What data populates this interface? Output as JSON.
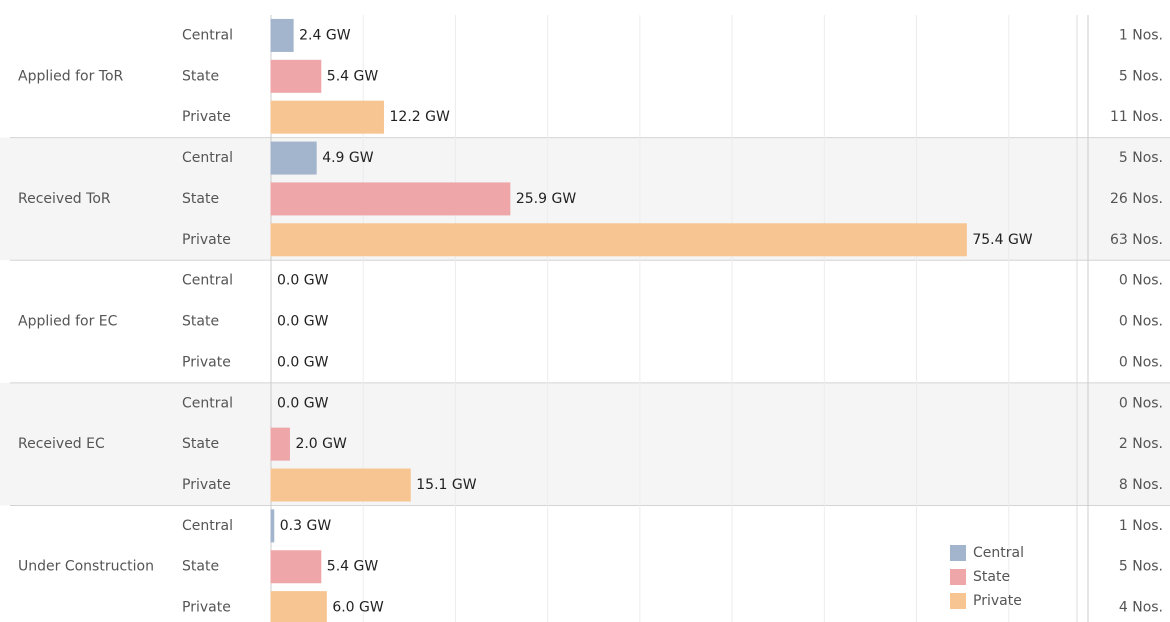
{
  "chart_data": {
    "type": "bar",
    "orientation": "horizontal",
    "categories": [
      "Applied for ToR",
      "Received ToR",
      "Applied for EC",
      "Received EC",
      "Under Construction"
    ],
    "series": [
      {
        "name": "Central",
        "color": "#a3b5cc",
        "values": [
          2.4,
          4.9,
          0.0,
          0.0,
          0.3
        ],
        "value_labels": [
          "2.4 GW",
          "4.9 GW",
          "0.0 GW",
          "0.0 GW",
          "0.3 GW"
        ],
        "counts": [
          1,
          5,
          0,
          0,
          1
        ],
        "count_labels": [
          "1 Nos.",
          "5 Nos.",
          "0 Nos.",
          "0 Nos.",
          "1 Nos."
        ]
      },
      {
        "name": "State",
        "color": "#eea6a8",
        "values": [
          5.4,
          25.9,
          0.0,
          2.0,
          5.4
        ],
        "value_labels": [
          "5.4 GW",
          "25.9 GW",
          "0.0 GW",
          "2.0 GW",
          "5.4 GW"
        ],
        "counts": [
          5,
          26,
          0,
          2,
          5
        ],
        "count_labels": [
          "5 Nos.",
          "26 Nos.",
          "0 Nos.",
          "2 Nos.",
          "5 Nos."
        ]
      },
      {
        "name": "Private",
        "color": "#f6c592",
        "values": [
          12.2,
          75.4,
          0.0,
          15.1,
          6.0
        ],
        "value_labels": [
          "12.2 GW",
          "75.4 GW",
          "0.0 GW",
          "15.1 GW",
          "6.0 GW"
        ],
        "counts": [
          11,
          63,
          0,
          8,
          4
        ],
        "count_labels": [
          "11 Nos.",
          "63 Nos.",
          "0 Nos.",
          "8 Nos.",
          "4 Nos."
        ]
      }
    ],
    "xlim": [
      0,
      87.4
    ],
    "xticks": [
      0,
      10,
      20,
      30,
      40,
      50,
      60,
      70,
      80
    ],
    "grid": true,
    "legend": "bottom-right"
  }
}
